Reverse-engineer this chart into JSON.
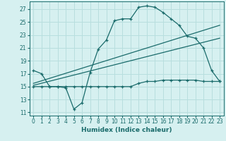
{
  "xlabel": "Humidex (Indice chaleur)",
  "background_color": "#d6f0f0",
  "grid_color": "#b8dede",
  "line_color": "#1a6b6b",
  "x_ticks": [
    0,
    1,
    2,
    3,
    4,
    5,
    6,
    7,
    8,
    9,
    10,
    11,
    12,
    13,
    14,
    15,
    16,
    17,
    18,
    19,
    20,
    21,
    22,
    23
  ],
  "y_ticks": [
    11,
    13,
    15,
    17,
    19,
    21,
    23,
    25,
    27
  ],
  "ylim": [
    10.5,
    28.2
  ],
  "xlim": [
    -0.5,
    23.5
  ],
  "series1_x": [
    0,
    1,
    2,
    3,
    4,
    5,
    6,
    7,
    8,
    9,
    10,
    11,
    12,
    13,
    14,
    15,
    16,
    17,
    18,
    19,
    20,
    21,
    22,
    23
  ],
  "series1_y": [
    17.5,
    17.0,
    15.0,
    15.0,
    14.8,
    11.5,
    12.5,
    17.2,
    20.8,
    22.2,
    25.2,
    25.5,
    25.5,
    27.3,
    27.5,
    27.3,
    26.5,
    25.5,
    24.5,
    22.8,
    22.5,
    21.0,
    17.5,
    15.8
  ],
  "series2_x": [
    0,
    1,
    2,
    3,
    4,
    5,
    6,
    7,
    8,
    9,
    10,
    11,
    12,
    13,
    14,
    15,
    16,
    17,
    18,
    19,
    20,
    21,
    22,
    23
  ],
  "series2_y": [
    15.0,
    15.0,
    15.0,
    15.0,
    15.0,
    15.0,
    15.0,
    15.0,
    15.0,
    15.0,
    15.0,
    15.0,
    15.0,
    15.5,
    15.8,
    15.8,
    16.0,
    16.0,
    16.0,
    16.0,
    16.0,
    15.8,
    15.8,
    15.8
  ],
  "series3_x": [
    0,
    23
  ],
  "series3_y": [
    15.2,
    22.5
  ],
  "series4_x": [
    0,
    23
  ],
  "series4_y": [
    15.5,
    24.5
  ]
}
